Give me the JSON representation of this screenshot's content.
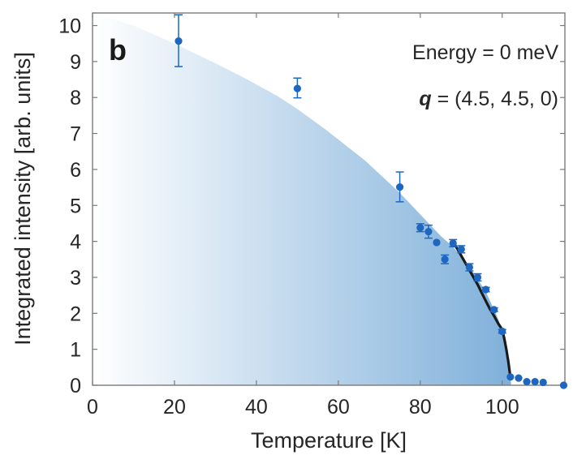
{
  "chart_data": {
    "type": "scatter",
    "panel_label": "b",
    "xlabel": "Temperature [K]",
    "ylabel": "Integrated intensity [arb. units]",
    "xlim": [
      0,
      115.3
    ],
    "ylim": [
      0,
      10.35
    ],
    "xticks": [
      0,
      20,
      40,
      60,
      80,
      100
    ],
    "yticks": [
      0,
      1,
      2,
      3,
      4,
      5,
      6,
      7,
      8,
      9,
      10
    ],
    "grid": false,
    "annotations": [
      {
        "text": "Energy = 0 meV",
        "position": "top-right"
      },
      {
        "q_symbol": "q",
        "text": " = (4.5, 4.5, 0)",
        "position": "top-right"
      }
    ],
    "colors": {
      "marker": "#1f66c0",
      "fit_line": "#1a1a1a",
      "shade_left": "#ffffff",
      "shade_right": "#7fb0da",
      "axis": "#7a7a7a"
    },
    "series": [
      {
        "name": "data",
        "kind": "scatter_errorbar",
        "points": [
          {
            "x": 21,
            "y": 9.57,
            "err_lo": 8.86,
            "err_hi": 10.3
          },
          {
            "x": 50,
            "y": 8.25,
            "err_lo": 7.99,
            "err_hi": 8.54
          },
          {
            "x": 75,
            "y": 5.51,
            "err_lo": 5.1,
            "err_hi": 5.93
          },
          {
            "x": 80,
            "y": 4.38,
            "err_lo": 4.27,
            "err_hi": 4.49
          },
          {
            "x": 82,
            "y": 4.27,
            "err_lo": 4.09,
            "err_hi": 4.45
          },
          {
            "x": 84,
            "y": 3.97,
            "err_lo": 3.97,
            "err_hi": 3.97
          },
          {
            "x": 86,
            "y": 3.5,
            "err_lo": 3.38,
            "err_hi": 3.62
          },
          {
            "x": 88,
            "y": 3.95,
            "err_lo": 3.85,
            "err_hi": 4.05
          },
          {
            "x": 90,
            "y": 3.78,
            "err_lo": 3.68,
            "err_hi": 3.88
          },
          {
            "x": 92,
            "y": 3.28,
            "err_lo": 3.18,
            "err_hi": 3.38
          },
          {
            "x": 94,
            "y": 3.0,
            "err_lo": 2.9,
            "err_hi": 3.1
          },
          {
            "x": 96,
            "y": 2.66,
            "err_lo": 2.6,
            "err_hi": 2.72
          },
          {
            "x": 98,
            "y": 2.1,
            "err_lo": 2.05,
            "err_hi": 2.15
          },
          {
            "x": 100,
            "y": 1.5,
            "err_lo": 1.45,
            "err_hi": 1.55
          },
          {
            "x": 102,
            "y": 0.23,
            "err_lo": 0.23,
            "err_hi": 0.23
          },
          {
            "x": 104,
            "y": 0.2,
            "err_lo": 0.2,
            "err_hi": 0.2
          },
          {
            "x": 106,
            "y": 0.1,
            "err_lo": 0.1,
            "err_hi": 0.1
          },
          {
            "x": 108,
            "y": 0.1,
            "err_lo": 0.1,
            "err_hi": 0.1
          },
          {
            "x": 110,
            "y": 0.08,
            "err_lo": 0.08,
            "err_hi": 0.08
          },
          {
            "x": 115,
            "y": 0.0,
            "err_lo": 0.0,
            "err_hi": 0.0
          }
        ]
      },
      {
        "name": "fit",
        "kind": "line",
        "x": [
          88,
          89,
          90,
          91,
          92,
          93,
          94,
          95,
          96,
          97,
          98,
          99,
          100,
          100.5,
          101,
          101.5,
          102
        ],
        "y": [
          3.98,
          3.8,
          3.6,
          3.4,
          3.2,
          3.0,
          2.8,
          2.57,
          2.34,
          2.12,
          1.93,
          1.72,
          1.55,
          1.3,
          1.0,
          0.65,
          0.22
        ]
      },
      {
        "name": "order-parameter shading",
        "kind": "area",
        "x": [
          0,
          10,
          20,
          30,
          37,
          45,
          50,
          57,
          66.5,
          75,
          80,
          85,
          88,
          92,
          96,
          99,
          101,
          102.2
        ],
        "y": [
          10.35,
          10.0,
          9.5,
          8.95,
          8.55,
          8.05,
          7.68,
          7.1,
          6.25,
          5.35,
          4.75,
          4.15,
          3.85,
          3.3,
          2.6,
          1.85,
          1.2,
          0.0
        ]
      }
    ]
  }
}
